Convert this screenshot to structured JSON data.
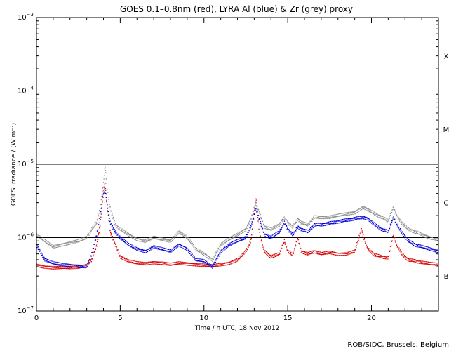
{
  "chart_data": {
    "type": "scatter",
    "title": "GOES 0.1–0.8nm (red), LYRA Al (blue) & Zr (grey) proxy",
    "xlabel": "Time / h UTC, 18 Nov 2012",
    "ylabel": "GOES Irradiance / (W m⁻²)",
    "xlim": [
      0,
      24
    ],
    "ylim": [
      1e-07,
      0.001
    ],
    "yscale": "log",
    "x_ticks": [
      0,
      5,
      10,
      15,
      20
    ],
    "x_tick_labels": [
      "0",
      "5",
      "10",
      "15",
      "20"
    ],
    "y_ticks": [
      1e-07,
      1e-06,
      1e-05,
      0.0001,
      0.001
    ],
    "y_tick_labels": [
      {
        "base": "10",
        "exp": "−7"
      },
      {
        "base": "10",
        "exp": "−6"
      },
      {
        "base": "10",
        "exp": "−5"
      },
      {
        "base": "10",
        "exp": "−4"
      },
      {
        "base": "10",
        "exp": "−3"
      }
    ],
    "class_levels": [
      1e-06,
      1e-05,
      0.0001
    ],
    "flare_classes": [
      {
        "label": "B",
        "value": 3e-07
      },
      {
        "label": "C",
        "value": 3e-06
      },
      {
        "label": "M",
        "value": 3e-05
      },
      {
        "label": "X",
        "value": 0.0003
      }
    ],
    "series": [
      {
        "color": "#d40000",
        "x": [
          0,
          0.5,
          1,
          1.5,
          2,
          2.5,
          3,
          3.3,
          3.6,
          3.8,
          4.0,
          4.1,
          4.2,
          4.4,
          4.7,
          5.0,
          5.5,
          6.0,
          6.5,
          7.0,
          7.5,
          8.0,
          8.5,
          9.0,
          9.5,
          10.0,
          10.5,
          11.0,
          11.5,
          12.0,
          12.5,
          12.8,
          13.1,
          13.3,
          13.6,
          14.0,
          14.5,
          14.8,
          15.0,
          15.3,
          15.6,
          15.8,
          16.2,
          16.6,
          17.0,
          17.5,
          18.0,
          18.5,
          19.0,
          19.4,
          19.6,
          19.8,
          20.2,
          20.6,
          21.0,
          21.3,
          21.5,
          21.8,
          22.2,
          22.6,
          23.0,
          23.5,
          24.0
        ],
        "y": [
          4.2e-07,
          4e-07,
          3.9e-07,
          3.9e-07,
          3.9e-07,
          4e-07,
          4.2e-07,
          5e-07,
          8e-07,
          1.5e-06,
          4.5e-06,
          5.5e-06,
          3e-06,
          1.2e-06,
          8e-07,
          5.5e-07,
          4.8e-07,
          4.5e-07,
          4.4e-07,
          4.6e-07,
          4.5e-07,
          4.3e-07,
          4.5e-07,
          4.4e-07,
          4.3e-07,
          4.2e-07,
          4.1e-07,
          4.3e-07,
          4.5e-07,
          5e-07,
          6.5e-07,
          9e-07,
          3.5e-06,
          1.2e-06,
          6.5e-07,
          5.5e-07,
          6e-07,
          9e-07,
          6.5e-07,
          5.8e-07,
          1e-06,
          6.5e-07,
          6e-07,
          6.5e-07,
          6e-07,
          6.3e-07,
          6e-07,
          6e-07,
          6.5e-07,
          1.3e-06,
          9e-07,
          7e-07,
          5.8e-07,
          5.5e-07,
          5.3e-07,
          1.1e-06,
          8e-07,
          6e-07,
          5e-07,
          4.8e-07,
          4.6e-07,
          4.4e-07,
          4.3e-07
        ]
      },
      {
        "color": "#0000d4",
        "x": [
          0,
          0.5,
          1,
          1.5,
          2,
          2.5,
          3,
          3.3,
          3.6,
          3.8,
          4.0,
          4.1,
          4.2,
          4.4,
          4.7,
          5.0,
          5.5,
          6.0,
          6.5,
          7.0,
          7.5,
          8.0,
          8.5,
          9.0,
          9.5,
          10.0,
          10.5,
          11.0,
          11.5,
          12.0,
          12.5,
          12.8,
          13.1,
          13.3,
          13.6,
          14.0,
          14.5,
          14.8,
          15.0,
          15.3,
          15.6,
          15.8,
          16.2,
          16.6,
          17.0,
          19.5,
          19.8,
          20.2,
          20.6,
          21.0,
          21.3,
          21.5,
          21.8,
          22.2,
          22.6,
          23.0,
          23.5,
          24.0
        ],
        "y": [
          8e-07,
          5e-07,
          4.5e-07,
          4.3e-07,
          4.2e-07,
          4.1e-07,
          4e-07,
          6e-07,
          1.1e-06,
          2e-06,
          4e-06,
          4.5e-06,
          3e-06,
          1.6e-06,
          1.2e-06,
          1e-06,
          8e-07,
          7e-07,
          6.5e-07,
          7.5e-07,
          7e-07,
          6.5e-07,
          8e-07,
          7e-07,
          5e-07,
          4.8e-07,
          4e-07,
          6.5e-07,
          8e-07,
          9e-07,
          1e-06,
          1.4e-06,
          2.5e-06,
          1.8e-06,
          1.1e-06,
          1e-06,
          1.2e-06,
          1.6e-06,
          1.3e-06,
          1.1e-06,
          1.4e-06,
          1.3e-06,
          1.2e-06,
          1.5e-06,
          1.5e-06,
          1.9e-06,
          1.8e-06,
          1.5e-06,
          1.3e-06,
          1.2e-06,
          1.9e-06,
          1.5e-06,
          1.2e-06,
          9e-07,
          8e-07,
          7.5e-07,
          7e-07,
          6.5e-07
        ]
      },
      {
        "color": "#8c8c8c",
        "x": [
          0,
          0.5,
          1,
          1.5,
          2,
          2.5,
          3,
          3.3,
          3.6,
          3.8,
          4.0,
          4.1,
          4.2,
          4.4,
          4.7,
          5.0,
          5.5,
          6.0,
          6.5,
          7.0,
          7.5,
          8.0,
          8.5,
          9.0,
          9.5,
          10.0,
          10.5,
          11.0,
          11.5,
          12.0,
          12.5,
          12.8,
          13.1,
          13.3,
          13.6,
          14.0,
          14.5,
          14.8,
          15.0,
          15.3,
          15.6,
          15.8,
          16.2,
          16.6,
          17.0,
          17.5,
          18.0,
          18.5,
          19.0,
          19.5,
          19.8,
          20.2,
          20.6,
          21.0,
          21.3,
          21.5,
          21.8,
          22.2,
          22.6,
          23.0,
          23.5,
          24.0
        ],
        "y": [
          1.1e-06,
          9e-07,
          7.5e-07,
          8e-07,
          8.5e-07,
          9e-07,
          1e-06,
          1.3e-06,
          1.6e-06,
          2.5e-06,
          5.5e-06,
          9.5e-06,
          5e-06,
          2.5e-06,
          1.5e-06,
          1.3e-06,
          1.1e-06,
          9.5e-07,
          9e-07,
          1e-06,
          9.5e-07,
          9e-07,
          1.2e-06,
          1e-06,
          7e-07,
          6e-07,
          5e-07,
          8e-07,
          9.5e-07,
          1.1e-06,
          1.3e-06,
          1.8e-06,
          3e-06,
          2.2e-06,
          1.4e-06,
          1.3e-06,
          1.5e-06,
          1.9e-06,
          1.6e-06,
          1.4e-06,
          1.8e-06,
          1.6e-06,
          1.5e-06,
          1.9e-06,
          1.9e-06,
          1.9e-06,
          2e-06,
          2.1e-06,
          2.2e-06,
          2.6e-06,
          2.4e-06,
          2.1e-06,
          1.9e-06,
          1.7e-06,
          2.6e-06,
          2e-06,
          1.6e-06,
          1.3e-06,
          1.2e-06,
          1.1e-06,
          1e-06,
          9.5e-07
        ]
      }
    ],
    "grid": false
  },
  "credit": "ROB/SIDC, Brussels, Belgium"
}
